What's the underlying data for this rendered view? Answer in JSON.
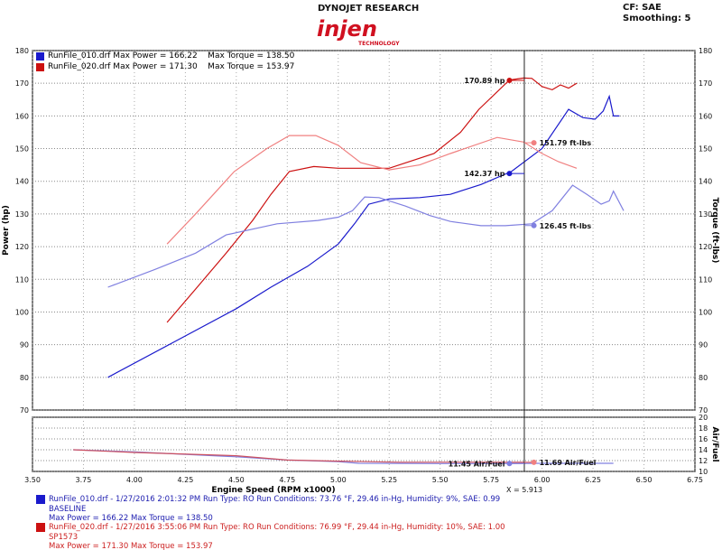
{
  "header": {
    "title": "DYNOJET RESEARCH",
    "settings": "CF: SAE  Smoothing: 5",
    "logo_text": "injen",
    "logo_sub": "TECHNOLOGY"
  },
  "legend": [
    {
      "text": "RunFile_010.drf Max Power = 166.22    Max Torque = 138.50",
      "color": "#1a1acc"
    },
    {
      "text": "RunFile_020.drf Max Power = 171.30    Max Torque = 153.97",
      "color": "#cc1111"
    }
  ],
  "footer": [
    {
      "line1": "RunFile_010.drf - 1/27/2016 2:01:32 PM  Run Type: RO  Run Conditions: 73.76 °F, 29.46 in-Hg,  Humidity:  9%, SAE: 0.99",
      "line2": "BASELINE",
      "line3": "Max Power = 166.22  Max Torque = 138.50",
      "color": "#2020b0"
    },
    {
      "line1": "RunFile_020.drf - 1/27/2016 3:55:06 PM  Run Type: RO  Run Conditions: 76.99 °F, 29.44 in-Hg,  Humidity:  10%, SAE: 1.00",
      "line2": "SP1573",
      "line3": "Max Power = 171.30  Max Torque = 153.97",
      "color": "#cc2020"
    }
  ],
  "chart_data": [
    {
      "type": "line",
      "xlabel": "Engine Speed (RPM x1000)",
      "ylabel": "Power (hp)",
      "y2label": "Torque (ft-lbs)",
      "xlim": [
        3.5,
        6.75
      ],
      "ylim": [
        70,
        180
      ],
      "y2lim": [
        70,
        180
      ],
      "xticks": [
        "3.50",
        "3.75",
        "4.00",
        "4.25",
        "4.50",
        "4.75",
        "5.00",
        "5.25",
        "5.50",
        "5.75",
        "6.00",
        "6.25",
        "6.50",
        "6.75"
      ],
      "yticks": [
        70,
        80,
        90,
        100,
        110,
        120,
        130,
        140,
        150,
        160,
        170,
        180
      ],
      "grid": true,
      "legend": "top-left",
      "cursor": {
        "x": 5.913,
        "label": "X = 5.913"
      },
      "series": [
        {
          "name": "RunFile_010.drf Power",
          "color": "#1a1acc",
          "x": [
            3.87,
            4.2,
            4.5,
            4.67,
            4.85,
            5.0,
            5.08,
            5.15,
            5.25,
            5.4,
            5.55,
            5.7,
            5.85,
            6.0,
            6.13,
            6.2,
            6.26,
            6.3,
            6.33,
            6.35,
            6.38
          ],
          "y": [
            80,
            91,
            101,
            107.6,
            114,
            120.8,
            127,
            133,
            134.6,
            135,
            136,
            139,
            143,
            150,
            162,
            159.5,
            159,
            161.5,
            166,
            160,
            160
          ]
        },
        {
          "name": "RunFile_020.drf Power",
          "color": "#cc1111",
          "x": [
            4.16,
            4.3,
            4.45,
            4.58,
            4.67,
            4.76,
            4.88,
            5.0,
            5.25,
            5.47,
            5.6,
            5.69,
            5.84,
            5.91,
            5.95,
            6.0,
            6.05,
            6.09,
            6.13,
            6.17
          ],
          "y": [
            96.8,
            107,
            118,
            128,
            136,
            143,
            144.5,
            144,
            144,
            148.5,
            155,
            162,
            171,
            171.6,
            171.5,
            169,
            168,
            169.5,
            168.5,
            170
          ]
        },
        {
          "name": "RunFile_020.drf Torque",
          "color": "#f08080",
          "x": [
            4.16,
            4.3,
            4.49,
            4.65,
            4.76,
            4.89,
            5.0,
            5.11,
            5.25,
            5.4,
            5.55,
            5.78,
            5.91,
            6.0,
            6.08,
            6.17
          ],
          "y": [
            120.8,
            130,
            143,
            150,
            154,
            154,
            151,
            145.7,
            143.5,
            145,
            148.5,
            153.4,
            152,
            148.5,
            146,
            144
          ]
        },
        {
          "name": "RunFile_010.drf Torque",
          "color": "#8080e0",
          "x": [
            3.87,
            4.1,
            4.3,
            4.45,
            4.7,
            4.9,
            5.0,
            5.07,
            5.13,
            5.2,
            5.33,
            5.45,
            5.55,
            5.7,
            5.82,
            5.95,
            6.05,
            6.15,
            6.22,
            6.29,
            6.33,
            6.35,
            6.4
          ],
          "y": [
            107.6,
            113,
            118,
            123.6,
            127,
            128,
            129,
            131,
            135.2,
            135,
            132.4,
            129.5,
            127.7,
            126.4,
            126.4,
            127,
            131,
            138.8,
            136,
            133,
            134,
            137,
            131
          ]
        }
      ],
      "annotations": [
        {
          "text": "170.89 hp",
          "x": 5.84,
          "y": 170.89,
          "color": "#cc1111",
          "side": "left"
        },
        {
          "text": "151.79 ft-lbs",
          "x": 5.96,
          "y": 151.79,
          "color": "#f08080",
          "side": "right"
        },
        {
          "text": "142.37 hp",
          "x": 5.84,
          "y": 142.37,
          "color": "#1a1acc",
          "side": "left"
        },
        {
          "text": "126.45 ft-lbs",
          "x": 5.96,
          "y": 126.45,
          "color": "#8080e0",
          "side": "right"
        }
      ]
    },
    {
      "type": "line",
      "ylabel": "Air/Fuel",
      "xlim": [
        3.5,
        6.75
      ],
      "ylim": [
        10,
        20
      ],
      "yticks": [
        10,
        12,
        14,
        16,
        18,
        20
      ],
      "grid": true,
      "series": [
        {
          "name": "RunFile_010.drf Air/Fuel",
          "color": "#8080e0",
          "x": [
            3.7,
            4.0,
            4.5,
            4.75,
            5.0,
            5.1,
            5.5,
            5.84,
            6.0,
            6.35
          ],
          "y": [
            14,
            13.6,
            12.7,
            12.1,
            11.8,
            11.5,
            11.45,
            11.45,
            11.5,
            11.5
          ]
        },
        {
          "name": "RunFile_020.drf Air/Fuel",
          "color": "#cc5060",
          "x": [
            3.7,
            4.0,
            4.5,
            4.75,
            5.0,
            5.3,
            5.6,
            5.96
          ],
          "y": [
            14,
            13.5,
            12.9,
            12.1,
            11.9,
            11.7,
            11.7,
            11.69
          ]
        }
      ],
      "annotations": [
        {
          "text": "11.45 Air/Fuel",
          "x": 5.84,
          "y": 11.45,
          "color": "#8080e0",
          "side": "left"
        },
        {
          "text": "11.69 Air/Fuel",
          "x": 5.96,
          "y": 11.69,
          "color": "#f08080",
          "side": "right"
        }
      ]
    }
  ]
}
